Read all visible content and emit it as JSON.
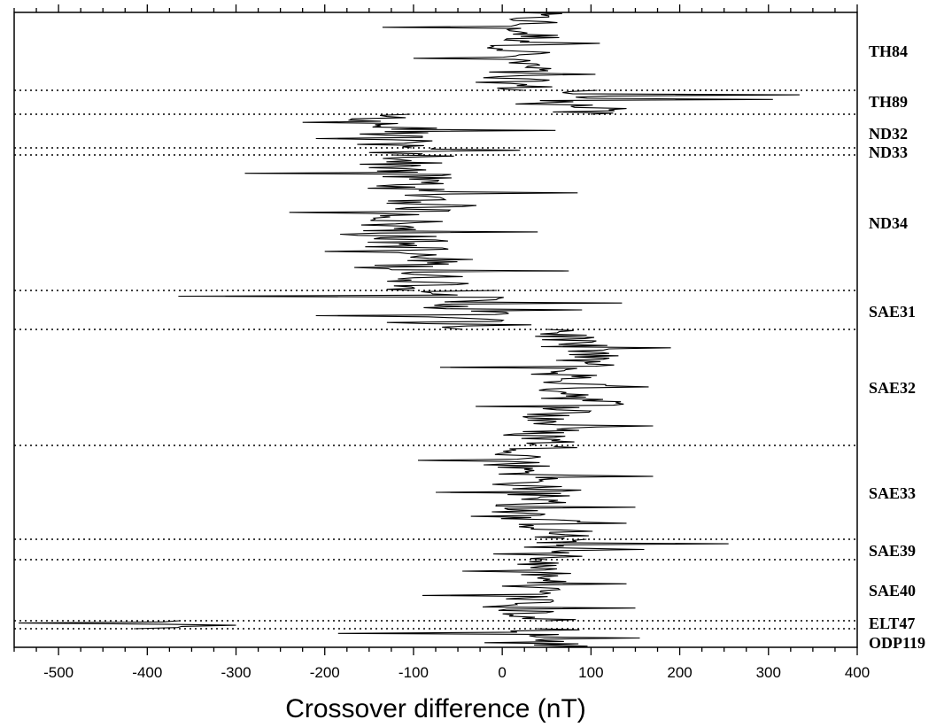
{
  "chart_data": {
    "type": "line",
    "xlabel": "Crossover difference (nT)",
    "ylabel": "",
    "xlim": [
      -550,
      400
    ],
    "x_ticks": [
      -500,
      -400,
      -300,
      -200,
      -100,
      0,
      100,
      200,
      300,
      400
    ],
    "x_tick_labels": [
      "-500",
      "-400",
      "-300",
      "-200",
      "-100",
      "0",
      "100",
      "200",
      "300",
      "400"
    ],
    "x_minor_step": 25,
    "grid": false,
    "colors": {
      "line": "#000000",
      "separator": "#000000"
    },
    "cruises": [
      {
        "name": "TH84",
        "mean": 20,
        "spread": 38,
        "outliers": [
          -135,
          110,
          -100,
          105
        ]
      },
      {
        "name": "TH89",
        "mean": 95,
        "spread": 40,
        "outliers": [
          335,
          305,
          15,
          140
        ]
      },
      {
        "name": "ND32",
        "mean": -130,
        "spread": 45,
        "outliers": [
          -225,
          60,
          -210
        ]
      },
      {
        "name": "ND33",
        "mean": -110,
        "spread": 30,
        "outliers": [
          20,
          -150
        ]
      },
      {
        "name": "ND34",
        "mean": -100,
        "spread": 45,
        "outliers": [
          -290,
          85,
          -240,
          40,
          -200,
          75
        ]
      },
      {
        "name": "SAE31",
        "mean": -40,
        "spread": 50,
        "outliers": [
          -365,
          135,
          90,
          -210,
          -130
        ]
      },
      {
        "name": "SAE32",
        "mean": 70,
        "spread": 40,
        "outliers": [
          190,
          -70,
          165,
          -30,
          170
        ]
      },
      {
        "name": "SAE33",
        "mean": 40,
        "spread": 40,
        "outliers": [
          -95,
          170,
          -75,
          150,
          140
        ]
      },
      {
        "name": "SAE39",
        "mean": 65,
        "spread": 35,
        "outliers": [
          255,
          160,
          -10
        ]
      },
      {
        "name": "SAE40",
        "mean": 40,
        "spread": 35,
        "outliers": [
          -45,
          140,
          -90,
          150
        ]
      },
      {
        "name": "ELT47",
        "mean": -380,
        "spread": 40,
        "outliers": [
          -545,
          -300
        ]
      },
      {
        "name": "ODP119",
        "mean": 40,
        "spread": 45,
        "outliers": [
          -185,
          155,
          -20
        ]
      }
    ]
  }
}
